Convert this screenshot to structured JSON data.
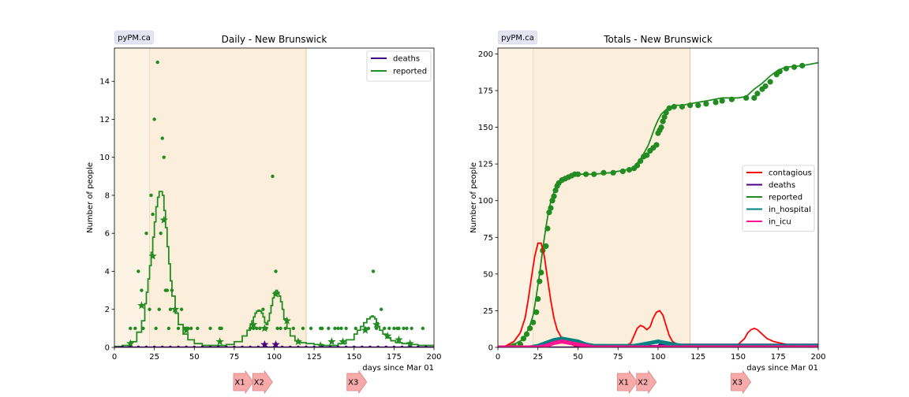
{
  "chart_data": [
    {
      "type": "line",
      "title": "Daily - New Brunswick",
      "badge": "pyPM.ca",
      "xlabel": "days since Mar 01",
      "ylabel": "Number of people",
      "xlim": [
        0,
        200
      ],
      "ylim": [
        0,
        15.75
      ],
      "xticks": [
        0,
        25,
        50,
        75,
        100,
        125,
        150,
        175,
        200
      ],
      "yticks": [
        0,
        2,
        4,
        6,
        8,
        10,
        12,
        14
      ],
      "legend_position": "top-right",
      "shaded_periods": [
        {
          "from": 0,
          "to": 22,
          "color": "#fdf3e4"
        },
        {
          "from": 22,
          "to": 120,
          "color": "#fbefdc"
        }
      ],
      "markers": [
        {
          "label": "X1",
          "x": 79
        },
        {
          "label": "X2",
          "x": 91
        },
        {
          "label": "X3",
          "x": 150
        }
      ],
      "legend": [
        {
          "name": "deaths",
          "color": "#4b0082"
        },
        {
          "name": "reported",
          "color": "#228b22"
        }
      ],
      "series": [
        {
          "name": "reported",
          "color": "#228b22",
          "style": "step-line",
          "x": [
            0,
            5,
            10,
            14,
            17,
            19,
            20,
            21,
            22,
            23,
            24,
            25,
            26,
            27,
            28,
            29,
            30,
            31,
            32,
            33,
            34,
            35,
            36,
            38,
            40,
            43,
            46,
            50,
            55,
            60,
            65,
            70,
            75,
            80,
            83,
            85,
            86,
            87,
            88,
            89,
            90,
            91,
            92,
            93,
            94,
            95,
            96,
            97,
            98,
            99,
            100,
            101,
            102,
            103,
            104,
            105,
            106,
            108,
            110,
            113,
            116,
            120,
            125,
            130,
            135,
            140,
            145,
            150,
            152,
            154,
            156,
            158,
            160,
            161,
            162,
            163,
            164,
            165,
            166,
            168,
            170,
            173,
            176,
            180,
            185,
            190,
            195,
            200
          ],
          "y": [
            0.05,
            0.1,
            0.3,
            0.8,
            1.4,
            2.3,
            2.9,
            3.6,
            4.3,
            5.0,
            5.8,
            6.6,
            7.4,
            7.9,
            8.2,
            8.2,
            8.0,
            7.2,
            6.3,
            5.3,
            4.4,
            3.5,
            2.7,
            1.8,
            1.2,
            0.7,
            0.4,
            0.2,
            0.1,
            0.1,
            0.1,
            0.15,
            0.3,
            0.6,
            0.9,
            1.2,
            1.4,
            1.6,
            1.8,
            1.9,
            1.95,
            1.9,
            1.8,
            1.6,
            1.3,
            1.2,
            1.4,
            1.8,
            2.2,
            2.6,
            2.9,
            3.0,
            2.9,
            2.7,
            2.4,
            2.0,
            1.5,
            1.0,
            0.6,
            0.35,
            0.25,
            0.2,
            0.15,
            0.1,
            0.1,
            0.2,
            0.4,
            0.7,
            0.9,
            1.1,
            1.3,
            1.5,
            1.6,
            1.65,
            1.6,
            1.5,
            1.3,
            1.1,
            0.9,
            0.7,
            0.5,
            0.35,
            0.25,
            0.2,
            0.15,
            0.1,
            0.1,
            0.08
          ]
        },
        {
          "name": "reported_daily_points",
          "color": "#228b22",
          "style": "dots",
          "x": [
            10,
            13,
            15,
            17,
            18,
            20,
            22,
            23,
            24,
            25,
            26,
            27,
            28,
            29,
            30,
            31,
            32,
            33,
            34,
            35,
            36,
            38,
            40,
            42,
            44,
            46,
            48,
            52,
            60,
            66,
            66,
            67,
            85,
            87,
            89,
            91,
            93,
            95,
            99,
            101,
            102,
            104,
            107,
            112,
            118,
            123,
            129,
            130,
            134,
            138,
            140,
            142,
            145,
            151,
            157,
            159,
            162,
            164,
            167,
            169,
            172,
            175,
            177,
            178,
            181,
            183,
            186,
            193
          ],
          "y": [
            1,
            1,
            4,
            3,
            1,
            6,
            2,
            8,
            7,
            12,
            1,
            15,
            2,
            6,
            11,
            10,
            3,
            3,
            1,
            2,
            3,
            2,
            1,
            2,
            1,
            1,
            1,
            1,
            1,
            1,
            1,
            1,
            1,
            1,
            1,
            1,
            2,
            1,
            9,
            4,
            1,
            1,
            1,
            1,
            1,
            1,
            1,
            1,
            1,
            1,
            1,
            1,
            1,
            1,
            1,
            1,
            4,
            1,
            2,
            1,
            1,
            1,
            1,
            1,
            1,
            1,
            1,
            1
          ]
        },
        {
          "name": "reported_weekly_stars",
          "color": "#228b22",
          "style": "stars",
          "x": [
            10,
            17,
            24,
            31,
            38,
            45,
            66,
            87,
            94,
            101,
            108,
            115,
            129,
            136,
            143,
            157,
            164,
            171,
            178,
            185
          ],
          "y": [
            0.2,
            2.2,
            4.8,
            6.7,
            2.0,
            0.9,
            0.3,
            1.2,
            1.0,
            2.8,
            1.4,
            0.3,
            0.1,
            0.3,
            0.3,
            0.9,
            1.2,
            0.6,
            0.4,
            0.2
          ]
        },
        {
          "name": "deaths",
          "color": "#4b0082",
          "style": "step-line",
          "x": [
            0,
            200
          ],
          "y": [
            0,
            0
          ]
        },
        {
          "name": "deaths_weekly_stars",
          "color": "#4b0082",
          "style": "stars",
          "x": [
            94,
            101
          ],
          "y": [
            0.15,
            0.15
          ]
        },
        {
          "name": "deaths_daily_points",
          "color": "#4b0082",
          "style": "dots",
          "x": [
            5,
            10,
            15,
            20,
            25,
            30,
            35,
            40,
            45,
            50,
            55,
            60,
            65,
            70,
            75,
            80,
            85,
            90,
            95,
            100,
            105,
            110,
            115,
            120,
            125,
            130,
            135,
            140,
            145,
            150,
            155,
            160,
            165,
            170,
            175,
            180,
            185,
            190,
            195
          ],
          "y": [
            0,
            0,
            0,
            0,
            0,
            0,
            0,
            0,
            0,
            0,
            0,
            0,
            0,
            0,
            0,
            0,
            0,
            0,
            0,
            0,
            0,
            0,
            0,
            0,
            0,
            0,
            0,
            0,
            0,
            0,
            0,
            0,
            0,
            0,
            0,
            0,
            0,
            0,
            0
          ]
        }
      ]
    },
    {
      "type": "line",
      "title": "Totals - New Brunswick",
      "badge": "pyPM.ca",
      "xlabel": "days since Mar 01",
      "ylabel": "Number of people",
      "xlim": [
        0,
        200
      ],
      "ylim": [
        0,
        204
      ],
      "xticks": [
        0,
        25,
        50,
        75,
        100,
        125,
        150,
        175,
        200
      ],
      "yticks": [
        0,
        25,
        50,
        75,
        100,
        125,
        150,
        175,
        200
      ],
      "legend_position": "center-right",
      "shaded_periods": [
        {
          "from": 0,
          "to": 22,
          "color": "#fdf3e4"
        },
        {
          "from": 22,
          "to": 120,
          "color": "#fbefdc"
        }
      ],
      "markers": [
        {
          "label": "X1",
          "x": 79
        },
        {
          "label": "X2",
          "x": 91
        },
        {
          "label": "X3",
          "x": 150
        }
      ],
      "legend": [
        {
          "name": "contagious",
          "color": "#ff0000"
        },
        {
          "name": "deaths",
          "color": "#4b0082"
        },
        {
          "name": "reported",
          "color": "#228b22"
        },
        {
          "name": "in_hospital",
          "color": "#008080"
        },
        {
          "name": "in_icu",
          "color": "#ff1493"
        }
      ],
      "series": [
        {
          "name": "reported",
          "color": "#228b22",
          "style": "line",
          "x": [
            0,
            10,
            15,
            18,
            20,
            22,
            24,
            26,
            28,
            30,
            32,
            34,
            36,
            38,
            40,
            42,
            44,
            46,
            48,
            50,
            55,
            60,
            70,
            80,
            84,
            86,
            88,
            90,
            92,
            94,
            96,
            98,
            100,
            102,
            104,
            106,
            108,
            110,
            115,
            120,
            125,
            130,
            135,
            140,
            145,
            150,
            155,
            160,
            165,
            170,
            175,
            180,
            190,
            200
          ],
          "y": [
            0,
            2,
            5,
            10,
            15,
            22,
            35,
            50,
            67,
            82,
            95,
            103,
            108,
            111,
            114,
            116,
            117,
            118,
            118,
            118,
            118,
            118,
            119,
            121,
            122,
            124,
            127,
            130,
            134,
            138,
            144,
            150,
            155,
            159,
            161,
            163,
            164,
            165,
            165,
            166,
            167,
            168,
            169,
            170,
            170,
            170,
            171,
            176,
            180,
            185,
            189,
            191,
            192,
            194
          ]
        },
        {
          "name": "reported_points",
          "color": "#228b22",
          "style": "dots",
          "x": [
            10,
            14,
            16,
            18,
            20,
            22,
            24,
            25,
            26,
            27,
            28,
            30,
            31,
            32,
            33,
            34,
            35,
            36,
            37,
            38,
            40,
            42,
            44,
            46,
            48,
            50,
            55,
            60,
            66,
            72,
            78,
            82,
            85,
            87,
            89,
            91,
            93,
            95,
            97,
            99,
            100,
            101,
            102,
            103,
            104,
            105,
            107,
            110,
            115,
            120,
            125,
            130,
            136,
            140,
            146,
            155,
            160,
            162,
            165,
            167,
            170,
            174,
            176,
            180,
            185,
            190
          ],
          "y": [
            1,
            2,
            6,
            9,
            13,
            17,
            24,
            33,
            45,
            51,
            66,
            69,
            81,
            92,
            95,
            100,
            103,
            107,
            110,
            112,
            114,
            115,
            116,
            117,
            118,
            118,
            118,
            118,
            119,
            119,
            120,
            121,
            122,
            124,
            127,
            130,
            131,
            134,
            136,
            138,
            146,
            148,
            150,
            154,
            157,
            160,
            163,
            164,
            164,
            165,
            165,
            166,
            167,
            168,
            169,
            170,
            170,
            173,
            176,
            178,
            181,
            186,
            188,
            190,
            191,
            192
          ]
        },
        {
          "name": "contagious",
          "color": "#ff0000",
          "style": "line",
          "x": [
            0,
            5,
            10,
            14,
            17,
            19,
            21,
            23,
            25,
            27,
            29,
            31,
            33,
            35,
            37,
            40,
            44,
            48,
            52,
            56,
            60,
            65,
            70,
            75,
            80,
            83,
            85,
            87,
            89,
            91,
            93,
            95,
            97,
            99,
            101,
            103,
            105,
            107,
            109,
            112,
            115,
            120,
            125,
            130,
            135,
            140,
            145,
            150,
            154,
            156,
            158,
            160,
            162,
            165,
            168,
            172,
            176,
            180,
            185,
            190,
            195,
            200
          ],
          "y": [
            0,
            1,
            4,
            10,
            20,
            33,
            48,
            62,
            71,
            71,
            62,
            47,
            32,
            20,
            12,
            6,
            3,
            1,
            1,
            1,
            1,
            1,
            1,
            1,
            1,
            3,
            8,
            13,
            15,
            14,
            12,
            14,
            20,
            24,
            25,
            22,
            15,
            8,
            4,
            2,
            1,
            1,
            1,
            1,
            1,
            1,
            1,
            2,
            6,
            10,
            12,
            13,
            12,
            9,
            6,
            4,
            3,
            2,
            1,
            1,
            1,
            1
          ]
        },
        {
          "name": "deaths",
          "color": "#4b0082",
          "style": "line",
          "x": [
            0,
            90,
            91,
            100,
            101,
            150,
            200
          ],
          "y": [
            0,
            0,
            1,
            1,
            2,
            2,
            2
          ]
        },
        {
          "name": "in_hospital",
          "color": "#008080",
          "style": "band",
          "x": [
            0,
            20,
            25,
            30,
            35,
            40,
            45,
            50,
            55,
            60,
            70,
            80,
            85,
            90,
            95,
            100,
            105,
            110,
            115,
            120,
            150,
            200
          ],
          "y": [
            0,
            0,
            1,
            3,
            5,
            6,
            5,
            4,
            2,
            1,
            1,
            1,
            1,
            2,
            3,
            4,
            3,
            2,
            1,
            1,
            1,
            1
          ]
        },
        {
          "name": "in_icu",
          "color": "#ff1493",
          "style": "band",
          "x": [
            0,
            20,
            25,
            30,
            35,
            40,
            45,
            50,
            55,
            60,
            70,
            100,
            200
          ],
          "y": [
            0,
            0,
            0,
            1,
            3,
            4,
            3,
            2,
            1,
            0,
            0,
            0,
            0
          ]
        }
      ]
    }
  ]
}
